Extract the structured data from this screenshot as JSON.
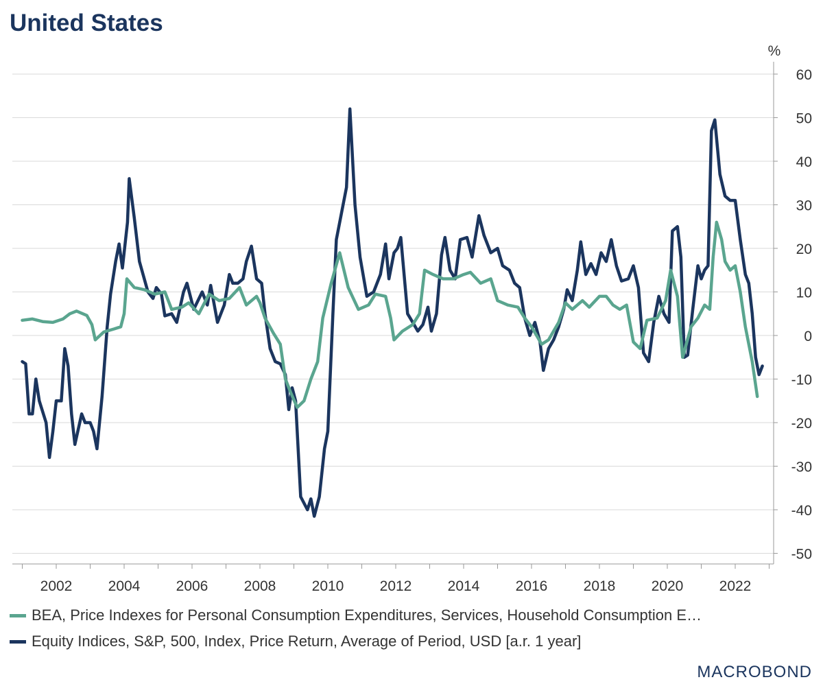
{
  "chart_data": {
    "type": "line",
    "title": "United States",
    "ylabel": "%",
    "ylim": [
      -55,
      62
    ],
    "xlim": [
      2001.0,
      2023.2
    ],
    "yticks": [
      60,
      50,
      40,
      30,
      20,
      10,
      0,
      -10,
      -20,
      -30,
      -40,
      -50
    ],
    "xticks": [
      2002,
      2004,
      2006,
      2008,
      2010,
      2012,
      2014,
      2016,
      2018,
      2020,
      2022
    ],
    "grid": "horizontal",
    "y_axis_position": "right",
    "legend_position": "bottom",
    "series": [
      {
        "name": "BEA, Price Indexes for Personal Consumption Expenditures, Services, Household Consumption E…",
        "color": "#5aa58f",
        "points": [
          [
            2001.0,
            3.5
          ],
          [
            2001.3,
            3.8
          ],
          [
            2001.6,
            3.2
          ],
          [
            2001.9,
            3.0
          ],
          [
            2002.2,
            3.8
          ],
          [
            2002.4,
            5.0
          ],
          [
            2002.6,
            5.6
          ],
          [
            2002.9,
            4.6
          ],
          [
            2003.05,
            2.5
          ],
          [
            2003.15,
            -1.0
          ],
          [
            2003.4,
            0.8
          ],
          [
            2003.7,
            1.5
          ],
          [
            2003.9,
            2.0
          ],
          [
            2004.0,
            5.0
          ],
          [
            2004.08,
            13.0
          ],
          [
            2004.3,
            11.0
          ],
          [
            2004.6,
            10.5
          ],
          [
            2004.9,
            9.5
          ],
          [
            2005.2,
            10.0
          ],
          [
            2005.4,
            6.0
          ],
          [
            2005.7,
            6.5
          ],
          [
            2005.9,
            7.5
          ],
          [
            2006.2,
            5.0
          ],
          [
            2006.5,
            9.5
          ],
          [
            2006.8,
            8.0
          ],
          [
            2007.1,
            8.5
          ],
          [
            2007.4,
            11.0
          ],
          [
            2007.6,
            7.0
          ],
          [
            2007.9,
            9.0
          ],
          [
            2008.0,
            7.5
          ],
          [
            2008.15,
            4.0
          ],
          [
            2008.4,
            0.5
          ],
          [
            2008.6,
            -2.0
          ],
          [
            2008.75,
            -10.0
          ],
          [
            2008.9,
            -13.0
          ],
          [
            2009.1,
            -16.5
          ],
          [
            2009.3,
            -15.0
          ],
          [
            2009.5,
            -10.0
          ],
          [
            2009.7,
            -6.0
          ],
          [
            2009.85,
            4.0
          ],
          [
            2010.1,
            12.0
          ],
          [
            2010.35,
            19.0
          ],
          [
            2010.6,
            11.0
          ],
          [
            2010.9,
            6.0
          ],
          [
            2011.2,
            7.0
          ],
          [
            2011.4,
            9.5
          ],
          [
            2011.7,
            9.0
          ],
          [
            2011.85,
            4.0
          ],
          [
            2011.95,
            -1.0
          ],
          [
            2012.2,
            1.0
          ],
          [
            2012.5,
            2.5
          ],
          [
            2012.7,
            5.0
          ],
          [
            2012.85,
            15.0
          ],
          [
            2013.1,
            14.0
          ],
          [
            2013.4,
            13.0
          ],
          [
            2013.7,
            13.0
          ],
          [
            2014.0,
            14.0
          ],
          [
            2014.2,
            14.5
          ],
          [
            2014.5,
            12.0
          ],
          [
            2014.8,
            13.0
          ],
          [
            2015.0,
            8.0
          ],
          [
            2015.3,
            7.0
          ],
          [
            2015.6,
            6.5
          ],
          [
            2015.8,
            4.0
          ],
          [
            2016.0,
            2.0
          ],
          [
            2016.3,
            -2.0
          ],
          [
            2016.5,
            -1.0
          ],
          [
            2016.8,
            3.0
          ],
          [
            2017.0,
            7.5
          ],
          [
            2017.2,
            6.0
          ],
          [
            2017.5,
            8.0
          ],
          [
            2017.7,
            6.5
          ],
          [
            2018.0,
            9.0
          ],
          [
            2018.2,
            9.0
          ],
          [
            2018.4,
            7.0
          ],
          [
            2018.6,
            6.0
          ],
          [
            2018.8,
            7.0
          ],
          [
            2019.0,
            -1.5
          ],
          [
            2019.2,
            -3.0
          ],
          [
            2019.4,
            3.5
          ],
          [
            2019.7,
            4.0
          ],
          [
            2019.95,
            8.0
          ],
          [
            2020.1,
            15.0
          ],
          [
            2020.3,
            9.0
          ],
          [
            2020.45,
            -5.0
          ],
          [
            2020.7,
            2.0
          ],
          [
            2020.9,
            4.0
          ],
          [
            2021.1,
            7.0
          ],
          [
            2021.25,
            6.0
          ],
          [
            2021.35,
            18.0
          ],
          [
            2021.45,
            26.0
          ],
          [
            2021.6,
            22.0
          ],
          [
            2021.7,
            17.0
          ],
          [
            2021.85,
            15.0
          ],
          [
            2022.0,
            16.0
          ],
          [
            2022.15,
            10.0
          ],
          [
            2022.3,
            2.0
          ],
          [
            2022.5,
            -6.0
          ],
          [
            2022.65,
            -14.0
          ]
        ]
      },
      {
        "name": "Equity Indices, S&P, 500, Index, Price Return, Average of Period, USD [a.r. 1 year]",
        "color": "#1b355e",
        "points": [
          [
            2001.0,
            -6.0
          ],
          [
            2001.1,
            -6.5
          ],
          [
            2001.2,
            -18.0
          ],
          [
            2001.3,
            -18.0
          ],
          [
            2001.4,
            -10.0
          ],
          [
            2001.5,
            -15.0
          ],
          [
            2001.7,
            -20.0
          ],
          [
            2001.8,
            -28.0
          ],
          [
            2001.9,
            -22.0
          ],
          [
            2002.0,
            -15.0
          ],
          [
            2002.15,
            -15.0
          ],
          [
            2002.25,
            -3.0
          ],
          [
            2002.35,
            -7.0
          ],
          [
            2002.45,
            -18.0
          ],
          [
            2002.55,
            -25.0
          ],
          [
            2002.75,
            -18.0
          ],
          [
            2002.85,
            -20.0
          ],
          [
            2003.0,
            -20.0
          ],
          [
            2003.1,
            -22.0
          ],
          [
            2003.2,
            -26.0
          ],
          [
            2003.35,
            -14.0
          ],
          [
            2003.5,
            2.0
          ],
          [
            2003.6,
            9.5
          ],
          [
            2003.75,
            17.0
          ],
          [
            2003.85,
            21.0
          ],
          [
            2003.95,
            15.5
          ],
          [
            2004.1,
            26.0
          ],
          [
            2004.15,
            36.0
          ],
          [
            2004.3,
            27.0
          ],
          [
            2004.45,
            17.0
          ],
          [
            2004.7,
            10.0
          ],
          [
            2004.85,
            8.5
          ],
          [
            2004.95,
            11.0
          ],
          [
            2005.1,
            9.5
          ],
          [
            2005.2,
            4.5
          ],
          [
            2005.4,
            5.0
          ],
          [
            2005.55,
            3.0
          ],
          [
            2005.75,
            10.0
          ],
          [
            2005.85,
            12.0
          ],
          [
            2006.05,
            6.0
          ],
          [
            2006.3,
            10.0
          ],
          [
            2006.45,
            7.0
          ],
          [
            2006.55,
            11.5
          ],
          [
            2006.75,
            3.0
          ],
          [
            2006.95,
            7.0
          ],
          [
            2007.1,
            14.0
          ],
          [
            2007.2,
            12.0
          ],
          [
            2007.35,
            12.0
          ],
          [
            2007.5,
            13.0
          ],
          [
            2007.6,
            17.0
          ],
          [
            2007.75,
            20.5
          ],
          [
            2007.9,
            13.0
          ],
          [
            2008.05,
            12.0
          ],
          [
            2008.15,
            5.0
          ],
          [
            2008.3,
            -3.0
          ],
          [
            2008.45,
            -6.0
          ],
          [
            2008.6,
            -6.5
          ],
          [
            2008.75,
            -9.0
          ],
          [
            2008.85,
            -17.0
          ],
          [
            2008.95,
            -12.0
          ],
          [
            2009.05,
            -15.0
          ],
          [
            2009.2,
            -37.0
          ],
          [
            2009.4,
            -40.0
          ],
          [
            2009.5,
            -37.5
          ],
          [
            2009.6,
            -41.5
          ],
          [
            2009.75,
            -37.0
          ],
          [
            2009.9,
            -26.0
          ],
          [
            2010.0,
            -22.0
          ],
          [
            2010.15,
            5.0
          ],
          [
            2010.25,
            22.0
          ],
          [
            2010.4,
            28.0
          ],
          [
            2010.55,
            34.0
          ],
          [
            2010.65,
            52.0
          ],
          [
            2010.8,
            30.0
          ],
          [
            2010.95,
            18.0
          ],
          [
            2011.15,
            9.0
          ],
          [
            2011.35,
            10.0
          ],
          [
            2011.55,
            14.0
          ],
          [
            2011.7,
            21.0
          ],
          [
            2011.8,
            13.0
          ],
          [
            2011.95,
            19.0
          ],
          [
            2012.05,
            20.0
          ],
          [
            2012.15,
            22.5
          ],
          [
            2012.35,
            5.0
          ],
          [
            2012.5,
            3.0
          ],
          [
            2012.65,
            1.0
          ],
          [
            2012.8,
            2.5
          ],
          [
            2012.95,
            6.5
          ],
          [
            2013.05,
            1.0
          ],
          [
            2013.2,
            5.0
          ],
          [
            2013.35,
            18.5
          ],
          [
            2013.45,
            22.5
          ],
          [
            2013.6,
            15.0
          ],
          [
            2013.75,
            13.0
          ],
          [
            2013.9,
            22.0
          ],
          [
            2014.1,
            22.5
          ],
          [
            2014.25,
            18.0
          ],
          [
            2014.45,
            27.5
          ],
          [
            2014.6,
            23.0
          ],
          [
            2014.8,
            19.0
          ],
          [
            2015.0,
            20.0
          ],
          [
            2015.15,
            16.0
          ],
          [
            2015.35,
            15.0
          ],
          [
            2015.5,
            12.0
          ],
          [
            2015.65,
            11.0
          ],
          [
            2015.8,
            4.0
          ],
          [
            2015.95,
            0.0
          ],
          [
            2016.1,
            3.0
          ],
          [
            2016.25,
            -1.5
          ],
          [
            2016.35,
            -8.0
          ],
          [
            2016.5,
            -3.0
          ],
          [
            2016.65,
            -1.0
          ],
          [
            2016.8,
            2.0
          ],
          [
            2016.95,
            6.0
          ],
          [
            2017.05,
            10.5
          ],
          [
            2017.2,
            8.0
          ],
          [
            2017.35,
            15.0
          ],
          [
            2017.45,
            21.5
          ],
          [
            2017.6,
            14.0
          ],
          [
            2017.75,
            16.5
          ],
          [
            2017.9,
            14.0
          ],
          [
            2018.05,
            19.0
          ],
          [
            2018.2,
            17.0
          ],
          [
            2018.35,
            22.0
          ],
          [
            2018.5,
            16.0
          ],
          [
            2018.65,
            12.5
          ],
          [
            2018.85,
            13.0
          ],
          [
            2019.0,
            16.0
          ],
          [
            2019.15,
            11.0
          ],
          [
            2019.3,
            -4.0
          ],
          [
            2019.45,
            -6.0
          ],
          [
            2019.6,
            3.0
          ],
          [
            2019.75,
            9.0
          ],
          [
            2019.9,
            5.0
          ],
          [
            2020.05,
            3.0
          ],
          [
            2020.15,
            24.0
          ],
          [
            2020.3,
            25.0
          ],
          [
            2020.4,
            18.0
          ],
          [
            2020.5,
            -5.0
          ],
          [
            2020.6,
            -4.5
          ],
          [
            2020.75,
            6.0
          ],
          [
            2020.9,
            16.0
          ],
          [
            2021.0,
            13.0
          ],
          [
            2021.1,
            15.0
          ],
          [
            2021.2,
            16.0
          ],
          [
            2021.3,
            47.0
          ],
          [
            2021.4,
            49.5
          ],
          [
            2021.55,
            37.0
          ],
          [
            2021.7,
            32.0
          ],
          [
            2021.85,
            31.0
          ],
          [
            2022.0,
            31.0
          ],
          [
            2022.15,
            22.0
          ],
          [
            2022.3,
            14.0
          ],
          [
            2022.4,
            12.0
          ],
          [
            2022.5,
            5.0
          ],
          [
            2022.6,
            -5.0
          ],
          [
            2022.7,
            -9.0
          ],
          [
            2022.8,
            -7.0
          ]
        ]
      }
    ]
  },
  "brand": "MACROBOND"
}
